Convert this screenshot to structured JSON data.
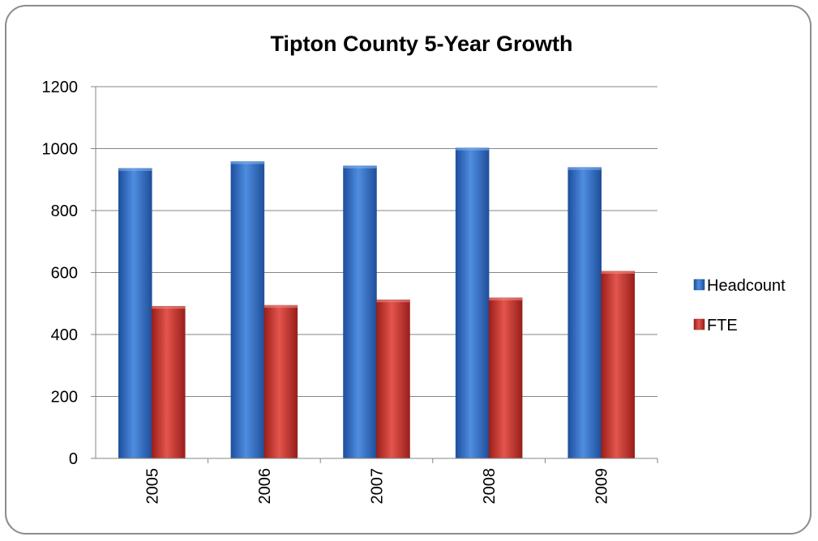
{
  "chart_data": {
    "type": "bar",
    "title": "Tipton County 5-Year Growth",
    "xlabel": "",
    "ylabel": "",
    "categories": [
      "2005",
      "2006",
      "2007",
      "2008",
      "2009"
    ],
    "series": [
      {
        "name": "Headcount",
        "values": [
          936,
          958,
          944,
          1002,
          939
        ],
        "color": "#2f6cc7"
      },
      {
        "name": "FTE",
        "values": [
          491,
          494,
          512,
          518,
          604
        ],
        "color": "#c9302a"
      }
    ],
    "ylim": [
      0,
      1200
    ],
    "yticks": [
      "0",
      "200",
      "400",
      "600",
      "800",
      "1000",
      "1200"
    ],
    "grid": true,
    "legend_position": "right"
  }
}
